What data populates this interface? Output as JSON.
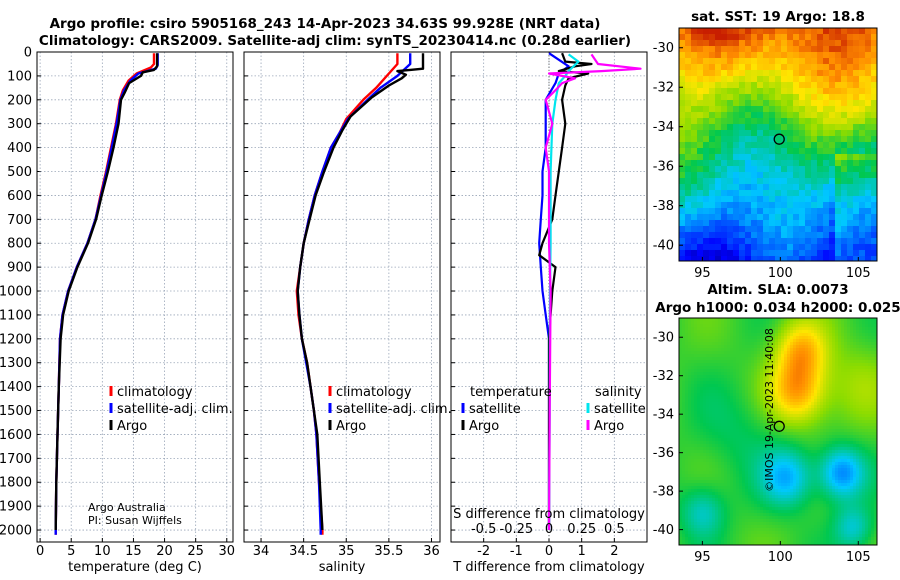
{
  "header": {
    "line1": "Argo profile: csiro 5905168_243 14-Apr-2023 34.63S 99.928E (NRT data)",
    "line2": "Climatology: CARS2009. Satellite-adj clim: synTS_20230414.nc (0.28d earlier)"
  },
  "credits": {
    "org": "Argo Australia",
    "pi": "PI: Susan Wijffels",
    "imos": "©IMOS 19-Apr-2023 11:40:08"
  },
  "colors": {
    "climatology": "#ff0000",
    "satellite_adj": "#0000ff",
    "argo": "#000000",
    "satellite_s": "#00e5ee",
    "argo_s": "#ff00ff",
    "grid": "#9aa6b8"
  },
  "chart_data": [
    {
      "type": "line",
      "id": "temperature",
      "xlabel": "temperature (deg C)",
      "xlim": [
        -0.5,
        31
      ],
      "xticks": [
        0,
        5,
        10,
        15,
        20,
        25,
        30
      ],
      "ylim": [
        2050,
        0
      ],
      "yticks": [
        0,
        100,
        200,
        300,
        400,
        500,
        600,
        700,
        800,
        900,
        1000,
        1100,
        1200,
        1300,
        1400,
        1500,
        1600,
        1700,
        1800,
        1900,
        2000
      ],
      "grid": true,
      "legend": [
        "climatology",
        "satellite-adj. clim.",
        "Argo"
      ],
      "legend_position": "lower-right",
      "series": [
        {
          "name": "climatology",
          "color_key": "climatology",
          "points": [
            [
              18.3,
              5
            ],
            [
              18.3,
              50
            ],
            [
              17.8,
              65
            ],
            [
              15.5,
              90
            ],
            [
              14.2,
              120
            ],
            [
              13.3,
              160
            ],
            [
              12.8,
              200
            ],
            [
              12.2,
              300
            ],
            [
              11.4,
              400
            ],
            [
              10.6,
              500
            ],
            [
              9.7,
              600
            ],
            [
              8.9,
              700
            ],
            [
              7.6,
              800
            ],
            [
              5.9,
              900
            ],
            [
              4.5,
              1000
            ],
            [
              3.6,
              1100
            ],
            [
              3.2,
              1200
            ],
            [
              3.0,
              1400
            ],
            [
              2.8,
              1600
            ],
            [
              2.6,
              1800
            ],
            [
              2.5,
              2000
            ],
            [
              2.5,
              2020
            ]
          ]
        },
        {
          "name": "satellite-adj. clim.",
          "color_key": "satellite_adj",
          "points": [
            [
              18.9,
              5
            ],
            [
              18.9,
              55
            ],
            [
              18.6,
              70
            ],
            [
              15.8,
              90
            ],
            [
              14.5,
              120
            ],
            [
              13.5,
              160
            ],
            [
              12.9,
              200
            ],
            [
              12.3,
              300
            ],
            [
              11.5,
              400
            ],
            [
              10.7,
              500
            ],
            [
              9.8,
              600
            ],
            [
              8.9,
              700
            ],
            [
              7.6,
              800
            ],
            [
              5.9,
              900
            ],
            [
              4.5,
              1000
            ],
            [
              3.6,
              1100
            ],
            [
              3.2,
              1200
            ],
            [
              3.0,
              1400
            ],
            [
              2.8,
              1600
            ],
            [
              2.6,
              1800
            ],
            [
              2.5,
              2000
            ],
            [
              2.5,
              2020
            ]
          ]
        },
        {
          "name": "Argo",
          "color_key": "argo",
          "points": [
            [
              18.8,
              5
            ],
            [
              18.8,
              60
            ],
            [
              18.3,
              75
            ],
            [
              16.5,
              85
            ],
            [
              16.2,
              100
            ],
            [
              14.3,
              130
            ],
            [
              13.6,
              170
            ],
            [
              13.0,
              200
            ],
            [
              12.6,
              300
            ],
            [
              11.8,
              400
            ],
            [
              10.9,
              500
            ],
            [
              9.9,
              600
            ],
            [
              9.0,
              700
            ],
            [
              7.7,
              800
            ],
            [
              6.0,
              900
            ],
            [
              4.6,
              1000
            ],
            [
              3.7,
              1100
            ],
            [
              3.3,
              1200
            ],
            [
              3.0,
              1400
            ],
            [
              2.8,
              1600
            ],
            [
              2.6,
              1800
            ],
            [
              2.5,
              2000
            ]
          ]
        }
      ]
    },
    {
      "type": "line",
      "id": "salinity",
      "xlabel": "salinity",
      "xlim": [
        33.8,
        36.1
      ],
      "xticks": [
        34,
        34.5,
        35,
        35.5,
        36
      ],
      "ylim": [
        2050,
        0
      ],
      "grid": true,
      "legend": [
        "climatology",
        "satellite-adj. clim.",
        "Argo"
      ],
      "legend_position": "lower-right",
      "series": [
        {
          "name": "climatology",
          "color_key": "climatology",
          "points": [
            [
              35.6,
              5
            ],
            [
              35.6,
              50
            ],
            [
              35.5,
              90
            ],
            [
              35.35,
              150
            ],
            [
              35.2,
              200
            ],
            [
              35.0,
              280
            ],
            [
              34.92,
              340
            ],
            [
              34.82,
              400
            ],
            [
              34.72,
              500
            ],
            [
              34.63,
              600
            ],
            [
              34.56,
              700
            ],
            [
              34.5,
              800
            ],
            [
              34.46,
              900
            ],
            [
              34.42,
              1000
            ],
            [
              34.44,
              1100
            ],
            [
              34.48,
              1200
            ],
            [
              34.54,
              1300
            ],
            [
              34.58,
              1400
            ],
            [
              34.62,
              1500
            ],
            [
              34.65,
              1600
            ],
            [
              34.68,
              1800
            ],
            [
              34.72,
              2000
            ],
            [
              34.72,
              2020
            ]
          ]
        },
        {
          "name": "satellite-adj. clim.",
          "color_key": "satellite_adj",
          "points": [
            [
              35.75,
              5
            ],
            [
              35.75,
              50
            ],
            [
              35.6,
              100
            ],
            [
              35.4,
              150
            ],
            [
              35.25,
              200
            ],
            [
              35.02,
              280
            ],
            [
              34.92,
              340
            ],
            [
              34.82,
              400
            ],
            [
              34.72,
              500
            ],
            [
              34.63,
              600
            ],
            [
              34.56,
              700
            ],
            [
              34.5,
              800
            ],
            [
              34.46,
              900
            ],
            [
              34.43,
              1000
            ],
            [
              34.45,
              1100
            ],
            [
              34.48,
              1200
            ],
            [
              34.53,
              1300
            ],
            [
              34.58,
              1400
            ],
            [
              34.62,
              1500
            ],
            [
              34.65,
              1600
            ],
            [
              34.68,
              1800
            ],
            [
              34.7,
              2000
            ],
            [
              34.7,
              2020
            ]
          ]
        },
        {
          "name": "Argo",
          "color_key": "argo",
          "points": [
            [
              35.9,
              5
            ],
            [
              35.9,
              70
            ],
            [
              35.75,
              75
            ],
            [
              35.6,
              80
            ],
            [
              35.7,
              95
            ],
            [
              35.65,
              110
            ],
            [
              35.5,
              140
            ],
            [
              35.3,
              190
            ],
            [
              35.05,
              270
            ],
            [
              34.95,
              330
            ],
            [
              34.85,
              400
            ],
            [
              34.74,
              500
            ],
            [
              34.64,
              600
            ],
            [
              34.57,
              700
            ],
            [
              34.5,
              800
            ],
            [
              34.46,
              900
            ],
            [
              34.43,
              1000
            ],
            [
              34.45,
              1100
            ],
            [
              34.48,
              1200
            ],
            [
              34.54,
              1300
            ],
            [
              34.58,
              1400
            ],
            [
              34.62,
              1500
            ],
            [
              34.66,
              1600
            ],
            [
              34.69,
              1800
            ],
            [
              34.72,
              2000
            ]
          ]
        }
      ]
    },
    {
      "type": "line",
      "id": "difference",
      "xlabel": "T difference from climatology",
      "xlabel_top": "S difference from climatology",
      "xlim": [
        -3,
        3
      ],
      "xticks": [
        -2,
        -1,
        0,
        1,
        2
      ],
      "xticks_top_labels": [
        "-0.5",
        "-0.25",
        "0",
        "0.25",
        "0.5"
      ],
      "xticks_top_positions": [
        -2,
        -1,
        0,
        1,
        2
      ],
      "ylim": [
        2050,
        0
      ],
      "grid": true,
      "legend_t_title": "temperature",
      "legend_s_title": "salinity",
      "legend_t": [
        "satellite",
        "Argo"
      ],
      "legend_s": [
        "satellite",
        "Argo"
      ],
      "series": [
        {
          "name": "satellite",
          "group": "temperature",
          "color_key": "satellite_adj",
          "points": [
            [
              0,
              5
            ],
            [
              0.6,
              60
            ],
            [
              0.3,
              90
            ],
            [
              0.2,
              130
            ],
            [
              -0.1,
              200
            ],
            [
              -0.1,
              300
            ],
            [
              -0.1,
              400
            ],
            [
              -0.2,
              500
            ],
            [
              -0.2,
              600
            ],
            [
              -0.25,
              700
            ],
            [
              -0.3,
              800
            ],
            [
              -0.25,
              900
            ],
            [
              -0.2,
              1000
            ],
            [
              -0.1,
              1100
            ],
            [
              0,
              1200
            ],
            [
              0,
              1500
            ],
            [
              0,
              2000
            ]
          ]
        },
        {
          "name": "Argo",
          "group": "temperature",
          "color_key": "argo",
          "points": [
            [
              0.4,
              5
            ],
            [
              0.5,
              40
            ],
            [
              1.3,
              50
            ],
            [
              0.8,
              60
            ],
            [
              0.3,
              80
            ],
            [
              1.2,
              90
            ],
            [
              0.6,
              110
            ],
            [
              0.5,
              140
            ],
            [
              0.4,
              200
            ],
            [
              0.5,
              300
            ],
            [
              0.4,
              400
            ],
            [
              0.3,
              500
            ],
            [
              0.2,
              600
            ],
            [
              0.1,
              700
            ],
            [
              -0.2,
              800
            ],
            [
              -0.3,
              850
            ],
            [
              0.2,
              900
            ],
            [
              0.1,
              1000
            ],
            [
              0.05,
              1100
            ],
            [
              0,
              1200
            ],
            [
              0,
              1500
            ],
            [
              0,
              2000
            ]
          ]
        },
        {
          "name": "satellite",
          "group": "salinity",
          "color_key": "satellite_s",
          "points": [
            [
              0.6,
              10
            ],
            [
              0.9,
              40
            ],
            [
              0.6,
              80
            ],
            [
              0.5,
              100
            ],
            [
              0.3,
              130
            ],
            [
              0.2,
              200
            ],
            [
              0.1,
              300
            ],
            [
              0.05,
              500
            ],
            [
              0.05,
              800
            ],
            [
              0.03,
              1000
            ],
            [
              0.02,
              1500
            ],
            [
              0,
              2000
            ]
          ]
        },
        {
          "name": "Argo",
          "group": "salinity",
          "color_key": "argo_s",
          "points": [
            [
              1.3,
              10
            ],
            [
              1.5,
              50
            ],
            [
              2.8,
              70
            ],
            [
              1.6,
              80
            ],
            [
              0,
              90
            ],
            [
              0.8,
              110
            ],
            [
              0.4,
              130
            ],
            [
              0.2,
              160
            ],
            [
              -0.1,
              200
            ],
            [
              0.1,
              300
            ],
            [
              -0.1,
              400
            ],
            [
              0,
              500
            ],
            [
              0,
              800
            ],
            [
              0.05,
              1000
            ],
            [
              0.02,
              1500
            ],
            [
              0,
              2000
            ]
          ]
        }
      ]
    },
    {
      "type": "heatmap",
      "id": "sst_map",
      "title": "sat. SST: 19 Argo: 18.8",
      "xlim": [
        93.5,
        106.2
      ],
      "ylim": [
        -40.8,
        -29
      ],
      "xticks": [
        95,
        100,
        105
      ],
      "yticks": [
        -30,
        -32,
        -34,
        -36,
        -38,
        -40
      ],
      "marker": [
        99.928,
        -34.63
      ]
    },
    {
      "type": "heatmap",
      "id": "sla_map",
      "title": "Altim. SLA: 0.0073",
      "subtitle": "Argo h1000: 0.034 h2000: 0.025",
      "xlim": [
        93.5,
        106.2
      ],
      "ylim": [
        -40.8,
        -29
      ],
      "xticks": [
        95,
        100,
        105
      ],
      "yticks": [
        -30,
        -32,
        -34,
        -36,
        -38,
        -40
      ],
      "marker": [
        99.928,
        -34.63
      ]
    }
  ]
}
